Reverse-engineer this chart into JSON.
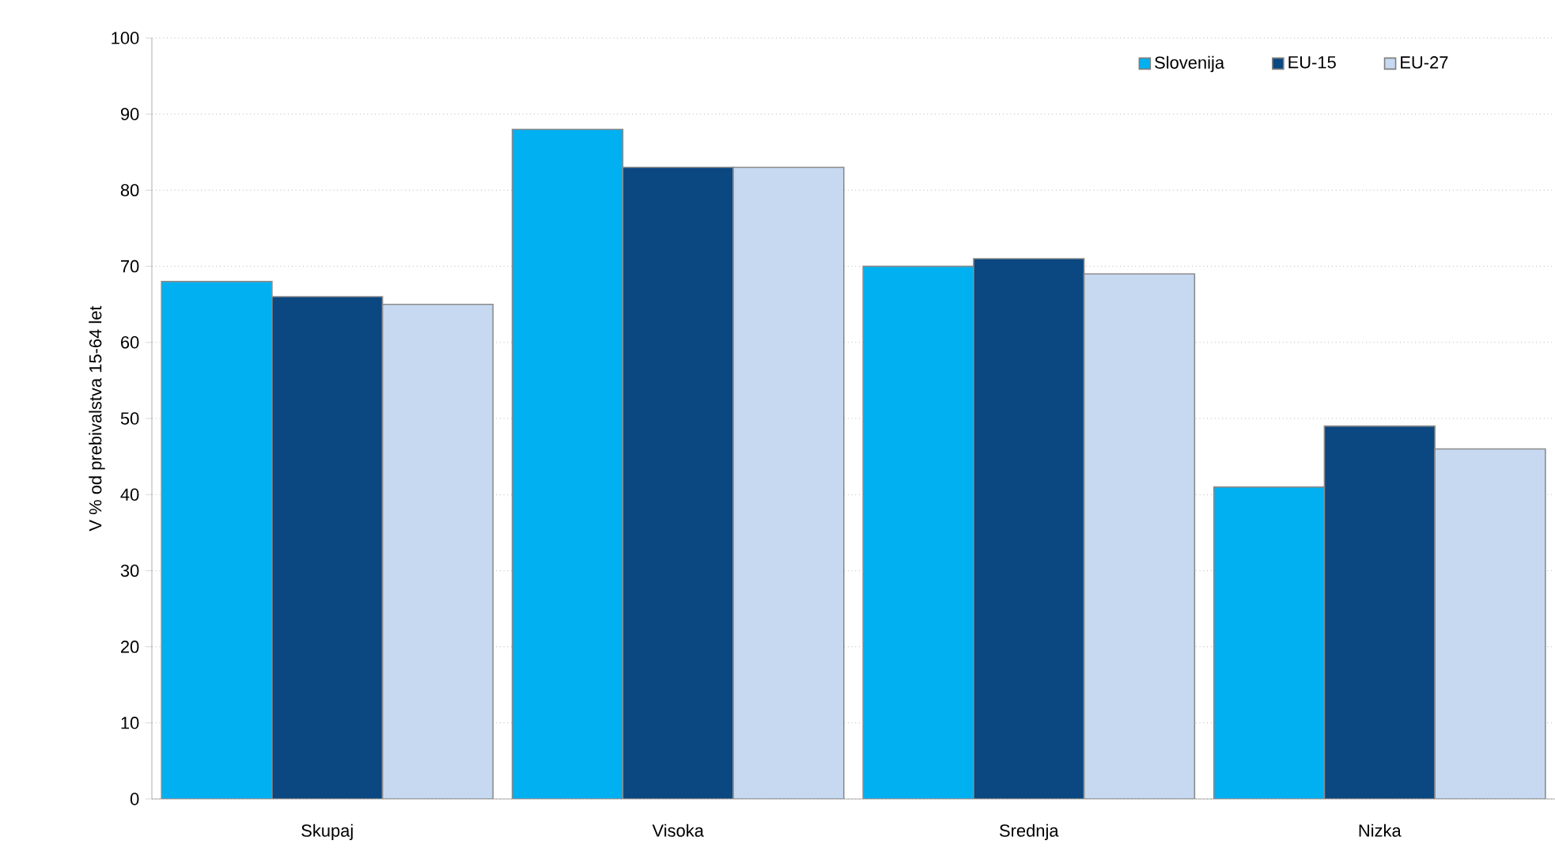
{
  "chart_data": {
    "type": "bar",
    "ylabel": "V % od prebivalstva 15-64 let",
    "categories": [
      "Skupaj",
      "Visoka",
      "Srednja",
      "Nizka"
    ],
    "series": [
      {
        "name": "Slovenija",
        "color": "#00b0f0",
        "values": [
          68,
          88,
          70,
          41
        ]
      },
      {
        "name": "EU-15",
        "color": "#0b4781",
        "values": [
          66,
          83,
          71,
          49
        ]
      },
      {
        "name": "EU-27",
        "color": "#c6d9f1",
        "values": [
          65,
          83,
          69,
          46
        ]
      }
    ],
    "ylim": [
      0,
      100
    ],
    "yticks": [
      0,
      10,
      20,
      30,
      40,
      50,
      60,
      70,
      80,
      90,
      100
    ],
    "grid": "y",
    "legend": "top right"
  }
}
